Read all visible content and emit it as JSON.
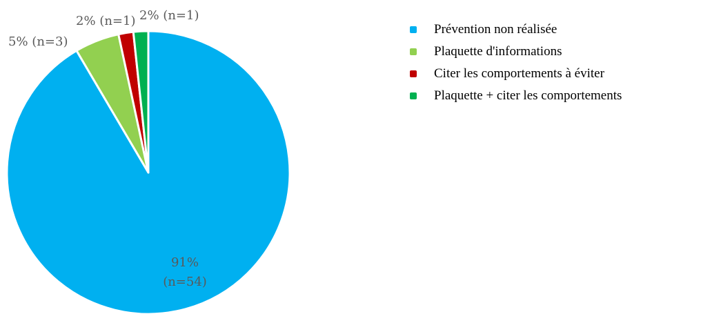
{
  "chart_data": {
    "type": "pie",
    "title": "",
    "start_angle_deg": 0,
    "direction": "clockwise",
    "slices": [
      {
        "label": "Prévention non réalisée",
        "value": 54,
        "percent_label": "91%",
        "count_label": "(n=54)",
        "color": "#00b0f0"
      },
      {
        "label": "Plaquette d'informations",
        "value": 3,
        "percent_label": "5%",
        "count_label": "(n=3)",
        "color": "#92d050"
      },
      {
        "label": "Citer les comportements à éviter",
        "value": 1,
        "percent_label": "2%",
        "count_label": "(n=1)",
        "color": "#c00000"
      },
      {
        "label": "Plaquette + citer les comportements",
        "value": 1,
        "percent_label": "2%",
        "count_label": "(n=1)",
        "color": "#00b050"
      }
    ],
    "legend_position": "right"
  },
  "legend": {
    "items": [
      {
        "text": "Prévention non réalisée",
        "color": "#00b0f0"
      },
      {
        "text": "Plaquette d'informations",
        "color": "#92d050"
      },
      {
        "text": "Citer les comportements à éviter",
        "color": "#c00000"
      },
      {
        "text": "Plaquette + citer les comportements",
        "color": "#00b050"
      }
    ]
  }
}
